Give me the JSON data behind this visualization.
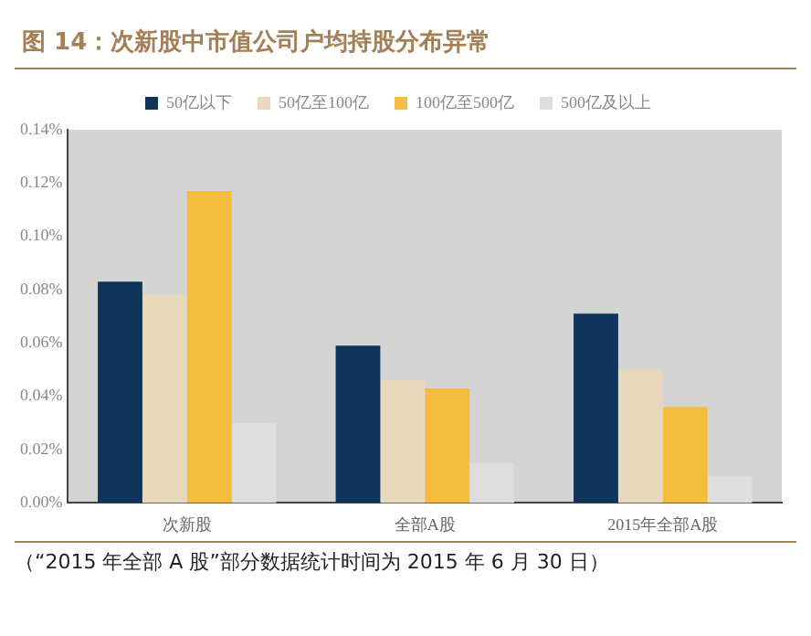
{
  "chart_data": {
    "type": "bar",
    "title": "图 14：次新股中市值公司户均持股分布异常",
    "categories": [
      "次新股",
      "全部A股",
      "2015年全部A股"
    ],
    "series": [
      {
        "name": "50亿以下",
        "color": "#10355a",
        "values": [
          0.083,
          0.059,
          0.071
        ]
      },
      {
        "name": "50亿至100亿",
        "color": "#e8d8bc",
        "values": [
          0.078,
          0.046,
          0.05
        ]
      },
      {
        "name": "100亿至500亿",
        "color": "#f5bd3c",
        "values": [
          0.117,
          0.043,
          0.036
        ]
      },
      {
        "name": "500亿及以上",
        "color": "#dedede",
        "values": [
          0.03,
          0.015,
          0.01
        ]
      }
    ],
    "ylim": [
      0,
      0.14
    ],
    "yticks": [
      {
        "value": 0,
        "label": "0.00%"
      },
      {
        "value": 0.02,
        "label": "0.02%"
      },
      {
        "value": 0.04,
        "label": "0.04%"
      },
      {
        "value": 0.06,
        "label": "0.06%"
      },
      {
        "value": 0.08,
        "label": "0.08%"
      },
      {
        "value": 0.1,
        "label": "0.10%"
      },
      {
        "value": 0.12,
        "label": "0.12%"
      },
      {
        "value": 0.14,
        "label": "0.14%"
      }
    ],
    "grid": false,
    "legend": "top",
    "annotations": [
      "（“2015 年全部 A 股”部分数据统计时间为 2015 年 6 月 30 日）"
    ]
  }
}
